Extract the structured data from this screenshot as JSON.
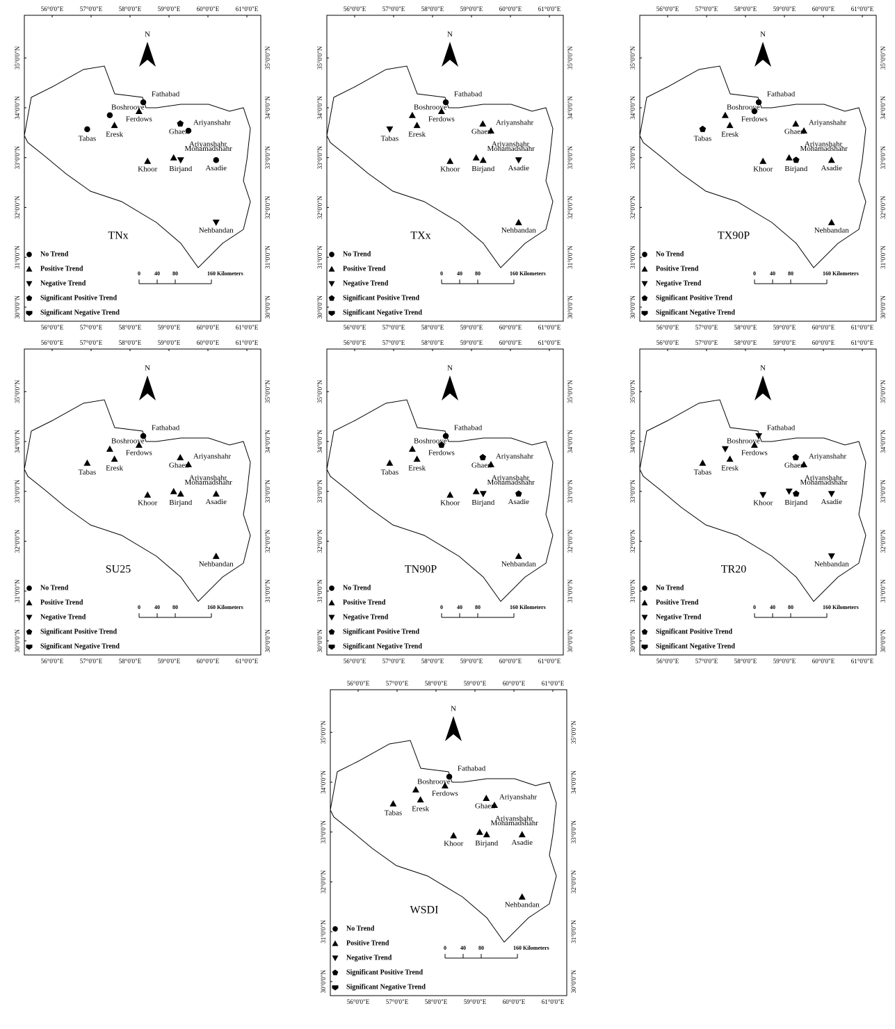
{
  "north": "N",
  "legend": [
    "No Trend",
    "Positive Trend",
    "Negative Trend",
    "Significant Positive Trend",
    "Significant  Negative Trend"
  ],
  "scale": {
    "ticks": [
      0,
      40,
      80,
      160
    ],
    "unit": "Kilometers"
  },
  "lon_ticks": [
    {
      "value": 56,
      "label": "56°0'0\"E"
    },
    {
      "value": 57,
      "label": "57°0'0\"E"
    },
    {
      "value": 58,
      "label": "58°0'0\"E"
    },
    {
      "value": 59,
      "label": "59°0'0\"E"
    },
    {
      "value": 60,
      "label": "60°0'0\"E"
    },
    {
      "value": 61,
      "label": "61°0'0\"E"
    }
  ],
  "lat_ticks": [
    {
      "value": 30,
      "label": "30°0'0\"N"
    },
    {
      "value": 31,
      "label": "31°0'0\"N"
    },
    {
      "value": 32,
      "label": "32°0'0\"N"
    },
    {
      "value": 33,
      "label": "33°0'0\"N"
    },
    {
      "value": 34,
      "label": "34°0'0\"N"
    },
    {
      "value": 35,
      "label": "35°0'0\"N"
    }
  ],
  "stations": [
    {
      "name": "Tabas",
      "lon": 56.9,
      "lat": 33.57
    },
    {
      "name": "Eresk",
      "lon": 57.6,
      "lat": 33.65
    },
    {
      "name": "Boshrooye",
      "lon": 57.48,
      "lat": 33.85
    },
    {
      "name": "Ferdows",
      "lon": 58.23,
      "lat": 33.93
    },
    {
      "name": "Fathabad",
      "lon": 58.34,
      "lat": 34.11
    },
    {
      "name": "Ghaen",
      "lon": 59.29,
      "lat": 33.68
    },
    {
      "name": "Ariyanshahr",
      "lon": 59.5,
      "lat": 33.54
    },
    {
      "name": "Ariyanshahr",
      "lon": 60.0,
      "lat": 33.26
    },
    {
      "name": "Mohamadshahr",
      "lon": 59.12,
      "lat": 33.0
    },
    {
      "name": "Birjand",
      "lon": 59.3,
      "lat": 32.95
    },
    {
      "name": "Khoor",
      "lon": 58.45,
      "lat": 32.93
    },
    {
      "name": "Asadie",
      "lon": 60.21,
      "lat": 32.95
    },
    {
      "name": "Nehbandan",
      "lon": 60.21,
      "lat": 31.7
    }
  ],
  "maps": [
    {
      "title": "TNx",
      "trends": [
        0,
        1,
        0,
        1,
        0,
        3,
        0,
        null,
        1,
        2,
        1,
        0,
        2
      ]
    },
    {
      "title": "TXx",
      "trends": [
        2,
        1,
        1,
        1,
        0,
        1,
        1,
        null,
        1,
        1,
        1,
        2,
        1
      ]
    },
    {
      "title": "TX90P",
      "trends": [
        3,
        1,
        1,
        0,
        0,
        1,
        1,
        null,
        1,
        3,
        1,
        1,
        1
      ]
    },
    {
      "title": "SU25",
      "trends": [
        1,
        1,
        1,
        1,
        0,
        1,
        1,
        null,
        1,
        1,
        1,
        1,
        1
      ]
    },
    {
      "title": "TN90P",
      "trends": [
        1,
        1,
        1,
        3,
        0,
        3,
        1,
        null,
        1,
        2,
        1,
        3,
        1
      ]
    },
    {
      "title": "TR20",
      "trends": [
        1,
        1,
        2,
        1,
        2,
        3,
        1,
        null,
        2,
        3,
        2,
        2,
        2
      ]
    },
    {
      "title": "WSDI",
      "trends": [
        1,
        1,
        1,
        1,
        0,
        1,
        1,
        null,
        1,
        1,
        1,
        1,
        1
      ]
    }
  ]
}
